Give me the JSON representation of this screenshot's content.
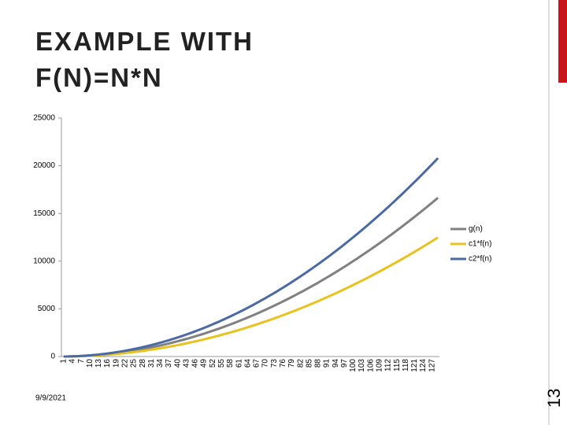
{
  "title_lines": [
    "EXAMPLE WITH",
    "F(N)=N*N"
  ],
  "date": "9/9/2021",
  "page_number": "13",
  "chart_data": {
    "type": "line",
    "categories": [
      "1",
      null,
      null,
      "4",
      null,
      null,
      "7",
      null,
      null,
      "10",
      null,
      null,
      "13",
      null,
      null,
      "16",
      null,
      null,
      "19",
      null,
      null,
      "22",
      null,
      null,
      "25",
      null,
      null,
      "28",
      null,
      null,
      "31",
      null,
      null,
      "34",
      null,
      null,
      "37",
      null,
      null,
      "40",
      null,
      null,
      "43",
      null,
      null,
      "46",
      null,
      null,
      "49",
      null,
      null,
      "52",
      null,
      null,
      "55",
      null,
      null,
      "58",
      null,
      null,
      "61",
      null,
      null,
      "64",
      null,
      null,
      "67",
      null,
      null,
      "70",
      null,
      null,
      "73",
      null,
      null,
      "76",
      null,
      null,
      "79",
      null,
      null,
      "82",
      null,
      null,
      "85",
      null,
      null,
      "88",
      null,
      null,
      "91",
      null,
      null,
      "94",
      null,
      null,
      "97",
      null,
      null,
      "100",
      null,
      null,
      "103",
      null,
      null,
      "106",
      null,
      null,
      "109",
      null,
      null,
      "112",
      null,
      null,
      "115",
      null,
      null,
      "118",
      null,
      null,
      "121",
      null,
      null,
      "124",
      null,
      null,
      "127",
      null,
      null
    ],
    "series": [
      {
        "name": "g(n)",
        "color": "#808080",
        "values": [
          1,
          4,
          9,
          16,
          25,
          36,
          49,
          64,
          81,
          100,
          121,
          144,
          169,
          196,
          225,
          256,
          289,
          324,
          361,
          400,
          441,
          484,
          529,
          576,
          625,
          676,
          729,
          784,
          841,
          900,
          961,
          1024,
          1089,
          1156,
          1225,
          1296,
          1369,
          1444,
          1521,
          1600,
          1681,
          1764,
          1849,
          1936,
          2025,
          2116,
          2209,
          2304,
          2401,
          2500,
          2601,
          2704,
          2809,
          2916,
          3025,
          3136,
          3249,
          3364,
          3481,
          3600,
          3721,
          3844,
          3969,
          4096,
          4225,
          4356,
          4489,
          4624,
          4761,
          4900,
          5041,
          5184,
          5329,
          5476,
          5625,
          5776,
          5929,
          6084,
          6241,
          6400,
          6561,
          6724,
          6889,
          7056,
          7225,
          7396,
          7569,
          7744,
          7921,
          8100,
          8281,
          8464,
          8649,
          8836,
          9025,
          9216,
          9409,
          9604,
          9801,
          10000,
          10201,
          10404,
          10609,
          10816,
          11025,
          11236,
          11449,
          11664,
          11881,
          12100,
          12321,
          12544,
          12769,
          12996,
          13225,
          13456,
          13689,
          13924,
          14161,
          14400,
          14641,
          14884,
          15129,
          15376,
          15625,
          15876,
          16129,
          16384,
          16641
        ]
      },
      {
        "name": "c1*f(n)",
        "color": "#e8c21e",
        "values": [
          0.75,
          3,
          6.75,
          12,
          18.75,
          27,
          36.75,
          48,
          60.75,
          75,
          90.75,
          108,
          126.75,
          147,
          168.75,
          192,
          216.75,
          243,
          270.75,
          300,
          330.75,
          363,
          396.75,
          432,
          468.75,
          507,
          546.75,
          588,
          630.75,
          675,
          720.75,
          768,
          816.75,
          867,
          918.75,
          972,
          1026.75,
          1083,
          1140.75,
          1200,
          1260.75,
          1323,
          1386.75,
          1452,
          1518.75,
          1587,
          1656.75,
          1728,
          1800.75,
          1875,
          1950.75,
          2028,
          2106.75,
          2187,
          2268.75,
          2352,
          2436.75,
          2523,
          2610.75,
          2700,
          2790.75,
          2883,
          2976.75,
          3072,
          3168.75,
          3267,
          3366.75,
          3468,
          3570.75,
          3675,
          3780.75,
          3888,
          3996.75,
          4107,
          4218.75,
          4332,
          4446.75,
          4563,
          4680.75,
          4800,
          4920.75,
          5043,
          5166.75,
          5292,
          5418.75,
          5547,
          5676.75,
          5808,
          5940.75,
          6075,
          6210.75,
          6348,
          6486.75,
          6627,
          6768.75,
          6912,
          7056.75,
          7203,
          7350.75,
          7500,
          7650.75,
          7803,
          7956.75,
          8112,
          8268.75,
          8427,
          8586.75,
          8748,
          8910.75,
          9075,
          9240.75,
          9408,
          9576.75,
          9747,
          9918.75,
          10092,
          10266.75,
          10443,
          10620.75,
          10800,
          10980.75,
          11163,
          11346.75,
          11532,
          11718.75,
          11907,
          12096.75,
          12288,
          12480.75
        ]
      },
      {
        "name": "c2*f(n)",
        "color": "#4a6aa4",
        "values": [
          1.25,
          5,
          11.25,
          20,
          31.25,
          45,
          61.25,
          80,
          101.25,
          125,
          151.25,
          180,
          211.25,
          245,
          281.25,
          320,
          361.25,
          405,
          451.25,
          500,
          551.25,
          605,
          661.25,
          720,
          781.25,
          845,
          911.25,
          980,
          1051.25,
          1125,
          1201.25,
          1280,
          1361.25,
          1445,
          1531.25,
          1620,
          1711.25,
          1805,
          1901.25,
          2000,
          2101.25,
          2205,
          2311.25,
          2420,
          2531.25,
          2645,
          2761.25,
          2880,
          3001.25,
          3125,
          3251.25,
          3380,
          3511.25,
          3645,
          3781.25,
          3920,
          4061.25,
          4205,
          4351.25,
          4500,
          4651.25,
          4805,
          4961.25,
          5120,
          5281.25,
          5445,
          5611.25,
          5780,
          5951.25,
          6125,
          6301.25,
          6480,
          6661.25,
          6845,
          7031.25,
          7220,
          7411.25,
          7605,
          7801.25,
          8000,
          8201.25,
          8405,
          8611.25,
          8820,
          9031.25,
          9245,
          9461.25,
          9680,
          9901.25,
          10125,
          10351.25,
          10580,
          10811.25,
          11045,
          11281.25,
          11520,
          11761.25,
          12005,
          12251.25,
          12500,
          12751.25,
          13005,
          13261.25,
          13520,
          13781.25,
          14045,
          14311.25,
          14580,
          14851.25,
          15125,
          15401.25,
          15680,
          15961.25,
          16245,
          16531.25,
          16820,
          17111.25,
          17405,
          17701.25,
          18000,
          18301.25,
          18605,
          18911.25,
          19220,
          19531.25,
          19845,
          20161.25,
          20480,
          20801.25
        ]
      }
    ],
    "ylim": [
      0,
      25000
    ],
    "yticks": [
      0,
      5000,
      10000,
      15000,
      20000,
      25000
    ],
    "grid": false,
    "legend": "right"
  }
}
